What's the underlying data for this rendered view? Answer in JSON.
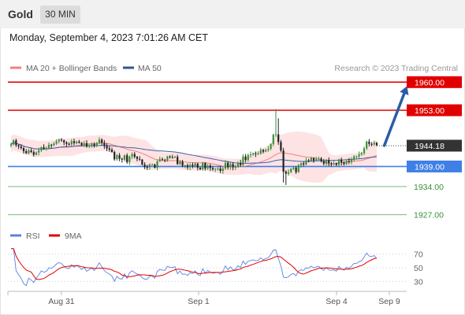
{
  "header": {
    "instrument": "Gold",
    "timeframe_label": "30 MIN"
  },
  "datetime": "Monday, September 4, 2023 7:01:26 AM CET",
  "legend": [
    {
      "label": "MA 20 + Bollinger Bands",
      "color": "#f08080"
    },
    {
      "label": "MA 50",
      "color": "#2f5597"
    }
  ],
  "copyright": "Research © 2023 Trading Central",
  "colors": {
    "resistance": "#e00000",
    "support": "#3f7fe6",
    "support_secondary": "#7cb87c",
    "candle_up": "#3a8f3a",
    "candle_down": "#222222",
    "bollinger_fill": "#fde3e3",
    "ma20": "#f08080",
    "ma50": "#3d5fa8",
    "arrow": "#2a5da8",
    "rsi": "#5b80e0",
    "rsi_ma": "#e00000"
  },
  "chart_data": [
    {
      "type": "candlestick",
      "x_ticks": [
        "Aug 31",
        "Sep 1",
        "Sep 4",
        "Sep 9"
      ],
      "ylim": [
        1923,
        1963
      ],
      "current_price": 1944.18,
      "levels": [
        {
          "value": 1960.0,
          "label": "1960.00",
          "style": "resistance-box"
        },
        {
          "value": 1953.0,
          "label": "1953.00",
          "style": "resistance-box"
        },
        {
          "value": 1939.0,
          "label": "1939.00",
          "style": "support-box"
        },
        {
          "value": 1934.0,
          "label": "1934.00",
          "style": "support-text"
        },
        {
          "value": 1927.0,
          "label": "1927.00",
          "style": "support-text"
        }
      ],
      "forecast_arrow": {
        "from": {
          "x": 148,
          "price": 1944.2
        },
        "to": {
          "x": 157,
          "price": 1959.0
        }
      },
      "close": [
        1944.5,
        1945.5,
        1944.3,
        1944.0,
        1943.6,
        1942.8,
        1942.3,
        1943.0,
        1942.6,
        1941.9,
        1942.5,
        1943.0,
        1943.8,
        1943.4,
        1943.6,
        1944.4,
        1944.3,
        1944.7,
        1945.3,
        1945.7,
        1945.5,
        1945.0,
        1944.6,
        1944.5,
        1945.3,
        1944.8,
        1945.2,
        1944.9,
        1944.4,
        1944.8,
        1944.0,
        1944.3,
        1944.6,
        1944.1,
        1944.8,
        1945.7,
        1944.9,
        1944.1,
        1943.5,
        1943.2,
        1942.6,
        1940.8,
        1941.8,
        1940.9,
        1940.7,
        1941.8,
        1940.1,
        1941.5,
        1942.1,
        1941.4,
        1940.9,
        1940.7,
        1939.5,
        1938.9,
        1938.8,
        1939.5,
        1939.5,
        1938.7,
        1940.3,
        1940.8,
        1940.6,
        1940.5,
        1941.5,
        1941.3,
        1941.2,
        1941.4,
        1939.6,
        1940.2,
        1939.2,
        1939.3,
        1938.8,
        1939.4,
        1939.1,
        1939.7,
        1938.7,
        1938.3,
        1939.9,
        1938.5,
        1939.2,
        1938.6,
        1938.3,
        1938.4,
        1938.5,
        1937.9,
        1938.5,
        1939.9,
        1938.8,
        1939.6,
        1938.8,
        1938.9,
        1939.9,
        1939.4,
        1941.5,
        1940.6,
        1941.8,
        1942.0,
        1942.3,
        1942.1,
        1942.2,
        1943.1,
        1942.7,
        1943.1,
        1943.4,
        1944.6,
        1946.9,
        1947.0,
        1945.1,
        1943.0,
        1937.7,
        1937.2,
        1937.6,
        1938.4,
        1938.7,
        1937.6,
        1939.3,
        1939.8,
        1939.5,
        1940.5,
        1940.3,
        1941.1,
        1940.5,
        1940.8,
        1941.0,
        1940.3,
        1939.7,
        1940.6,
        1939.8,
        1939.7,
        1939.8,
        1939.4,
        1940.7,
        1940.0,
        1939.6,
        1940.4,
        1940.1,
        1940.7,
        1941.5,
        1941.5,
        1942.0,
        1942.3,
        1943.5,
        1945.2,
        1944.6,
        1944.5,
        1944.9,
        1944.3
      ]
    },
    {
      "type": "line",
      "title": "RSI",
      "series": [
        {
          "name": "RSI"
        },
        {
          "name": "9MA"
        }
      ],
      "yticks": [
        70,
        50,
        30
      ],
      "ylim": [
        20,
        80
      ]
    }
  ]
}
